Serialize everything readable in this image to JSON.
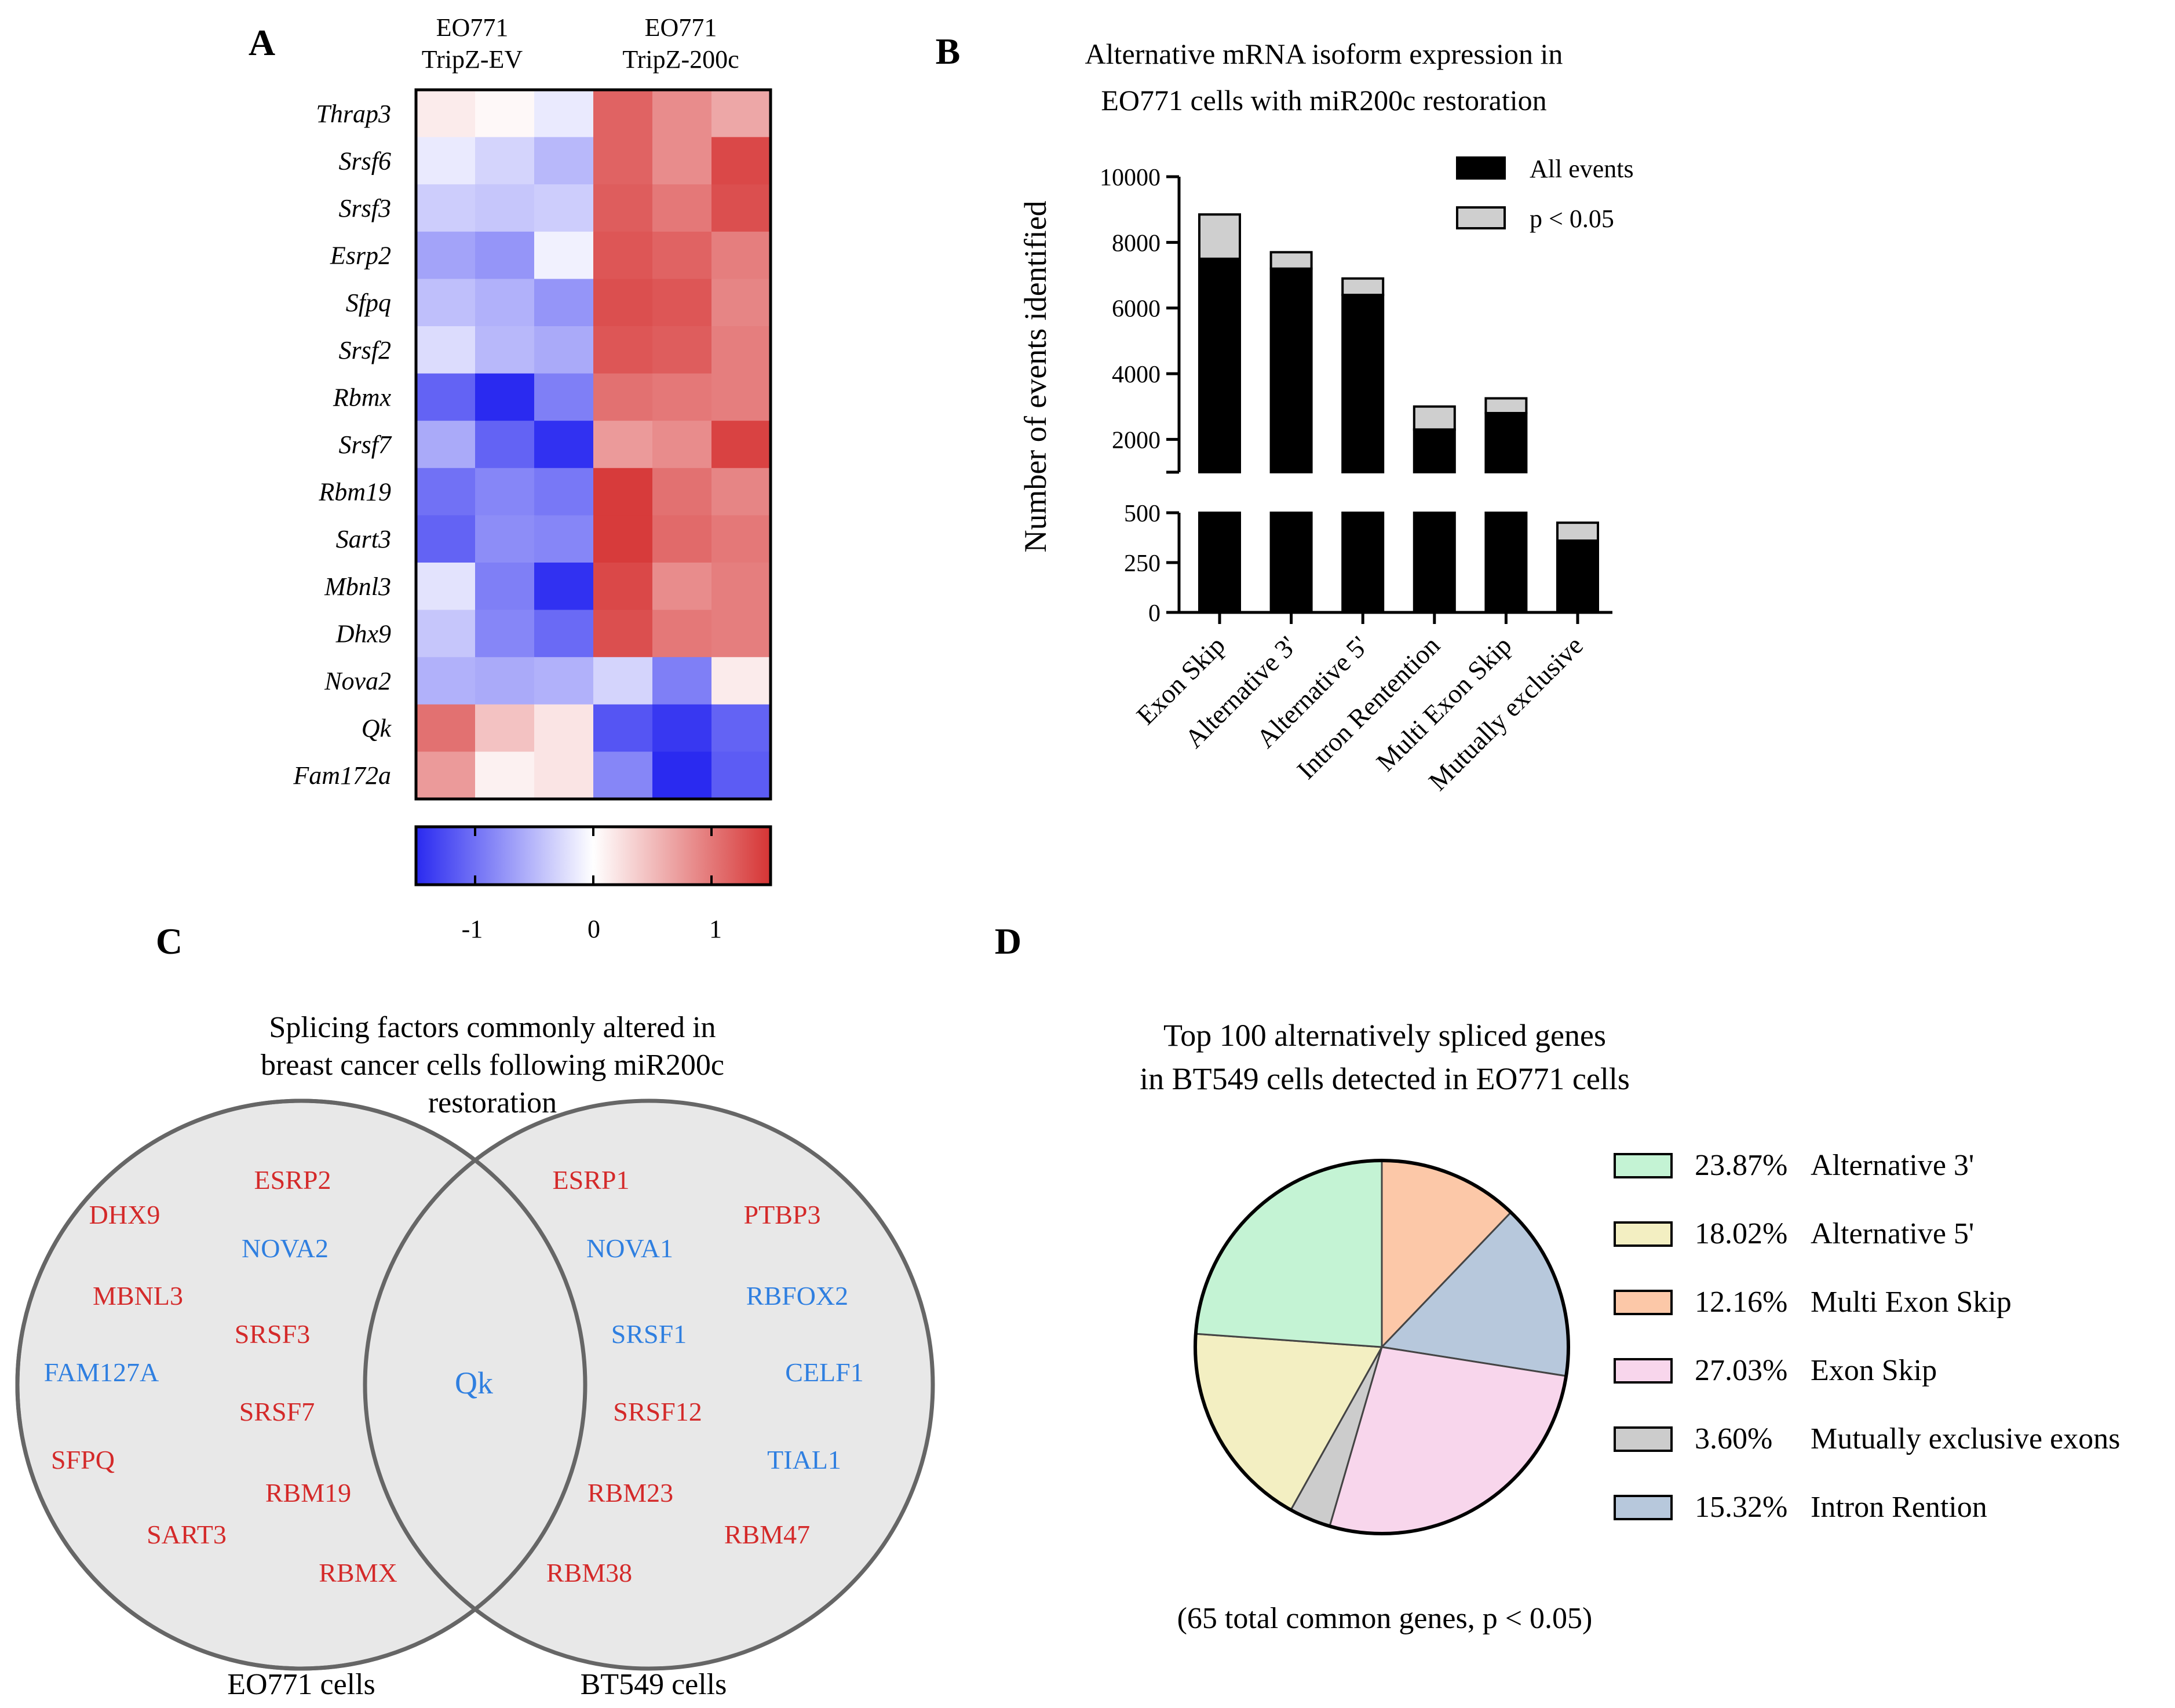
{
  "panels": {
    "a": "A",
    "b": "B",
    "c": "C",
    "d": "D"
  },
  "heatmap": {
    "group_labels": [
      {
        "line1": "EO771",
        "line2": "TripZ-EV"
      },
      {
        "line1": "EO771",
        "line2": "TripZ-200c"
      }
    ],
    "colorbar_ticks": [
      "-1",
      "0",
      "1"
    ]
  },
  "venn": {
    "title_lines": [
      "Splicing factors commonly altered in",
      "breast cancer cells following miR200c",
      "restoration"
    ],
    "left_label": "EO771 cells",
    "right_label": "BT549 cells",
    "intersection": "Qk"
  },
  "pie_legend": [
    {
      "pct": "23.87%",
      "label": "Alternative 3'"
    },
    {
      "pct": "18.02%",
      "label": "Alternative 5'"
    },
    {
      "pct": "12.16%",
      "label": "Multi Exon Skip"
    },
    {
      "pct": "27.03%",
      "label": "Exon Skip"
    },
    {
      "pct": "3.60%",
      "label": "Mutually exclusive exons"
    },
    {
      "pct": "15.32%",
      "label": "Intron Rention"
    }
  ],
  "chart_data": [
    {
      "type": "heatmap",
      "panel": "A",
      "title": "",
      "rows": [
        "Thrap3",
        "Srsf6",
        "Srsf3",
        "Esrp2",
        "Sfpq",
        "Srsf2",
        "Rbmx",
        "Srsf7",
        "Rbm19",
        "Sart3",
        "Mbnl3",
        "Dhx9",
        "Nova2",
        "Qk",
        "Fam172a"
      ],
      "columns": [
        "TripZ-EV 1",
        "TripZ-EV 2",
        "TripZ-EV 3",
        "TripZ-200c 1",
        "TripZ-200c 2",
        "TripZ-200c 3"
      ],
      "values": [
        [
          0.15,
          0.05,
          -0.15,
          1.15,
          0.85,
          0.65
        ],
        [
          -0.15,
          -0.3,
          -0.5,
          1.15,
          0.85,
          1.35
        ],
        [
          -0.35,
          -0.4,
          -0.35,
          1.2,
          1.0,
          1.3
        ],
        [
          -0.65,
          -0.75,
          -0.1,
          1.25,
          1.15,
          0.95
        ],
        [
          -0.45,
          -0.55,
          -0.75,
          1.3,
          1.25,
          0.9
        ],
        [
          -0.25,
          -0.5,
          -0.6,
          1.25,
          1.2,
          0.95
        ],
        [
          -1.1,
          -1.55,
          -0.9,
          1.05,
          1.0,
          0.95
        ],
        [
          -0.6,
          -1.1,
          -1.45,
          0.75,
          0.85,
          1.4
        ],
        [
          -1.0,
          -0.85,
          -0.95,
          1.45,
          1.05,
          0.9
        ],
        [
          -1.1,
          -0.8,
          -0.85,
          1.45,
          1.1,
          1.0
        ],
        [
          -0.2,
          -0.9,
          -1.45,
          1.35,
          0.85,
          0.95
        ],
        [
          -0.4,
          -0.85,
          -1.05,
          1.3,
          1.0,
          0.95
        ],
        [
          -0.55,
          -0.6,
          -0.55,
          -0.3,
          -0.9,
          0.15
        ],
        [
          1.05,
          0.45,
          0.2,
          -1.2,
          -1.4,
          -1.1
        ],
        [
          0.75,
          0.1,
          0.2,
          -0.85,
          -1.55,
          -1.15
        ]
      ],
      "colorbar": {
        "min": -1.5,
        "max": 1.5,
        "ticks": [
          -1,
          0,
          1
        ],
        "low_color": "#2a2af0",
        "mid_color": "#ffffff",
        "high_color": "#d63434"
      }
    },
    {
      "type": "bar",
      "panel": "B",
      "title": "Alternative mRNA isoform expression in EO771 cells with miR200c restoration",
      "xlabel": "",
      "ylabel": "Number of events identified",
      "categories": [
        "Exon Skip",
        "Alternative 3'",
        "Alternative 5'",
        "Intron Rentention",
        "Multi Exon Skip",
        "Mutually exclusive"
      ],
      "series": [
        {
          "name": "All events",
          "color": "#000000",
          "values": [
            7500,
            7200,
            6400,
            2300,
            2800,
            360
          ]
        },
        {
          "name": "p < 0.05",
          "color": "#cfcfcf",
          "values": [
            1350,
            500,
            500,
            700,
            450,
            90
          ]
        }
      ],
      "stacked": true,
      "broken_axis": {
        "lower_range": [
          0,
          500
        ],
        "lower_ticks": [
          0,
          250,
          500
        ],
        "upper_range": [
          1000,
          10000
        ],
        "upper_ticks": [
          2000,
          4000,
          6000,
          8000,
          10000
        ]
      },
      "legend": "top-right"
    },
    {
      "type": "venn",
      "panel": "C",
      "sets": [
        {
          "name": "EO771 cells",
          "items": [
            {
              "text": "ESRP2",
              "color": "#d42a2a"
            },
            {
              "text": "DHX9",
              "color": "#d42a2a"
            },
            {
              "text": "NOVA2",
              "color": "#2f7fe0"
            },
            {
              "text": "MBNL3",
              "color": "#d42a2a"
            },
            {
              "text": "SRSF3",
              "color": "#d42a2a"
            },
            {
              "text": "FAM127A",
              "color": "#2f7fe0"
            },
            {
              "text": "SRSF7",
              "color": "#d42a2a"
            },
            {
              "text": "SFPQ",
              "color": "#d42a2a"
            },
            {
              "text": "RBM19",
              "color": "#d42a2a"
            },
            {
              "text": "SART3",
              "color": "#d42a2a"
            },
            {
              "text": "RBMX",
              "color": "#d42a2a"
            }
          ]
        },
        {
          "name": "BT549 cells",
          "items": [
            {
              "text": "ESRP1",
              "color": "#d42a2a"
            },
            {
              "text": "PTBP3",
              "color": "#d42a2a"
            },
            {
              "text": "NOVA1",
              "color": "#2f7fe0"
            },
            {
              "text": "RBFOX2",
              "color": "#2f7fe0"
            },
            {
              "text": "SRSF1",
              "color": "#2f7fe0"
            },
            {
              "text": "CELF1",
              "color": "#2f7fe0"
            },
            {
              "text": "SRSF12",
              "color": "#d42a2a"
            },
            {
              "text": "TIAL1",
              "color": "#2f7fe0"
            },
            {
              "text": "RBM23",
              "color": "#d42a2a"
            },
            {
              "text": "RBM47",
              "color": "#d42a2a"
            },
            {
              "text": "RBM38",
              "color": "#d42a2a"
            }
          ]
        }
      ],
      "intersection": [
        {
          "text": "Qk",
          "color": "#2f7fe0"
        }
      ]
    },
    {
      "type": "pie",
      "panel": "D",
      "title": "Top 100 alternatively spliced genes in BT549 cells detected in EO771 cells",
      "footnote": "(65 total common genes, p < 0.05)",
      "slices": [
        {
          "label": "Multi Exon Skip",
          "value": 12.16,
          "color": "#fcc8a8"
        },
        {
          "label": "Intron Rention",
          "value": 15.32,
          "color": "#b7c8dc"
        },
        {
          "label": "Exon Skip",
          "value": 27.03,
          "color": "#f8d6ec"
        },
        {
          "label": "Mutually exclusive exons",
          "value": 3.6,
          "color": "#cccccc"
        },
        {
          "label": "Alternative 5'",
          "value": 18.02,
          "color": "#f3efc2"
        },
        {
          "label": "Alternative 3'",
          "value": 23.87,
          "color": "#c4f3d4"
        }
      ],
      "start_angle_deg": 0,
      "legend": "right"
    }
  ]
}
